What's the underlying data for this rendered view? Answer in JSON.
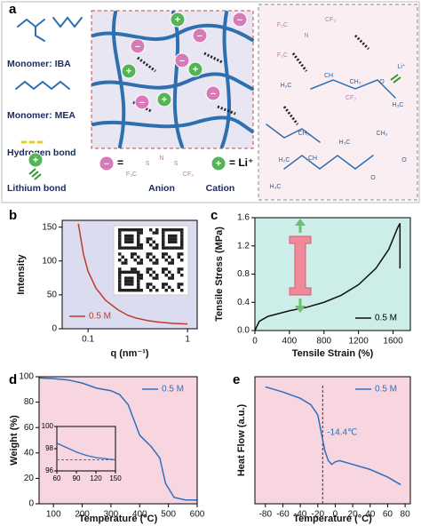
{
  "panel_labels": [
    "a",
    "b",
    "c",
    "d",
    "e"
  ],
  "diagram": {
    "legend_texts": [
      "Monomer: IBA",
      "Monomer: MEA",
      "Hydrogen bond",
      "Lithium bond"
    ],
    "ion_signs": [
      "–",
      "+"
    ],
    "equals": "=",
    "cation_formula": "= Li⁺",
    "anion_label": "Anion",
    "cation_label": "Cation",
    "anion_atoms": [
      "F₃C",
      "S",
      "N",
      "S",
      "CF₃"
    ],
    "structure_labels": [
      "F₃C",
      "CF₃",
      "N",
      "F₃C",
      "CF₃",
      "Li⁺",
      "H₂C",
      "CH",
      "CH₂",
      "O",
      "H₃C",
      "CH₂",
      "H₂C",
      "CH",
      "H₃C",
      "CH₃",
      "H₃C",
      "O",
      "O"
    ]
  },
  "chart_data": [
    {
      "type": "line",
      "xlabel": "q (nm⁻¹)",
      "ylabel": "Intensity",
      "xscale": "log",
      "xlim": [
        0.055,
        1.25
      ],
      "xticks": [
        0.1,
        1
      ],
      "ylim": [
        0,
        160
      ],
      "yticks": [
        0,
        50,
        100,
        150
      ],
      "x": [
        0.08,
        0.09,
        0.1,
        0.12,
        0.15,
        0.2,
        0.25,
        0.3,
        0.4,
        0.5,
        0.7,
        1
      ],
      "series": [
        {
          "name": "0.5 M",
          "color": "#c0392b",
          "values": [
            155,
            110,
            85,
            60,
            42,
            28,
            20,
            16,
            12,
            10,
            8,
            7
          ]
        }
      ],
      "legend": "lower left",
      "background": "#dcdcf0"
    },
    {
      "type": "line",
      "xlabel": "Tensile Strain (%)",
      "ylabel": "Tensile Stress (MPa)",
      "xlim": [
        0,
        1800
      ],
      "xticks": [
        0,
        400,
        800,
        1200,
        1600
      ],
      "ylim": [
        0,
        1.6
      ],
      "yticks": [
        {
          "value": 0,
          "label": "0.0"
        },
        0.4,
        0.8,
        1.2,
        1.6
      ],
      "x": [
        0,
        50,
        150,
        400,
        600,
        800,
        1000,
        1200,
        1400,
        1550,
        1650,
        1680,
        1680
      ],
      "series": [
        {
          "name": "0.5 M",
          "color": "#111111",
          "values": [
            0,
            0.13,
            0.2,
            0.28,
            0.33,
            0.4,
            0.5,
            0.65,
            0.88,
            1.15,
            1.45,
            1.52,
            0.88
          ]
        }
      ],
      "legend": "lower right",
      "background": "#cdeee8"
    },
    {
      "type": "line",
      "xlabel": "Temperature (°C)",
      "ylabel": "Weight (%)",
      "xlim": [
        50,
        600
      ],
      "xticks": [
        100,
        200,
        300,
        400,
        500,
        600
      ],
      "ylim": [
        0,
        100
      ],
      "yticks": [
        0,
        20,
        40,
        60,
        80,
        100
      ],
      "x": [
        50,
        100,
        150,
        200,
        250,
        300,
        330,
        360,
        380,
        400,
        440,
        470,
        490,
        520,
        560,
        600
      ],
      "series": [
        {
          "name": "0.5 M",
          "color": "#2c6fbf",
          "values": [
            99,
            98.5,
            97.5,
            95,
            91,
            89,
            86,
            78,
            66,
            54,
            45,
            36,
            16,
            5,
            3,
            3
          ]
        }
      ],
      "legend": "upper right",
      "background": "#f7d6df",
      "inset": {
        "xlim": [
          60,
          150
        ],
        "xticks": [
          60,
          90,
          120,
          150
        ],
        "ylim": [
          96,
          100
        ],
        "yticks": [
          96,
          98,
          100
        ],
        "x": [
          60,
          75,
          90,
          105,
          120,
          135,
          150
        ],
        "values": [
          98.5,
          98.1,
          97.7,
          97.4,
          97.2,
          97.1,
          97
        ],
        "reference": 97
      }
    },
    {
      "type": "line",
      "xlabel": "Temperature (°C)",
      "ylabel": "Heat Flow (a.u.)",
      "xlim": [
        -92,
        86
      ],
      "xticks": [
        -80,
        -60,
        -40,
        -20,
        0,
        20,
        40,
        60,
        80
      ],
      "ylim": [
        0,
        1
      ],
      "x": [
        -80,
        -60,
        -40,
        -28,
        -20,
        -16,
        -12,
        -8,
        -4,
        0,
        5,
        20,
        40,
        60,
        75
      ],
      "series": [
        {
          "name": "0.5 M",
          "color": "#2c6fbf",
          "values": [
            0.92,
            0.88,
            0.83,
            0.78,
            0.7,
            0.56,
            0.42,
            0.34,
            0.31,
            0.33,
            0.34,
            0.31,
            0.27,
            0.21,
            0.15
          ]
        }
      ],
      "legend": "upper right",
      "background": "#f7d6df",
      "annotations": [
        {
          "text": "-14.4℃",
          "x": -14.4
        }
      ]
    }
  ]
}
